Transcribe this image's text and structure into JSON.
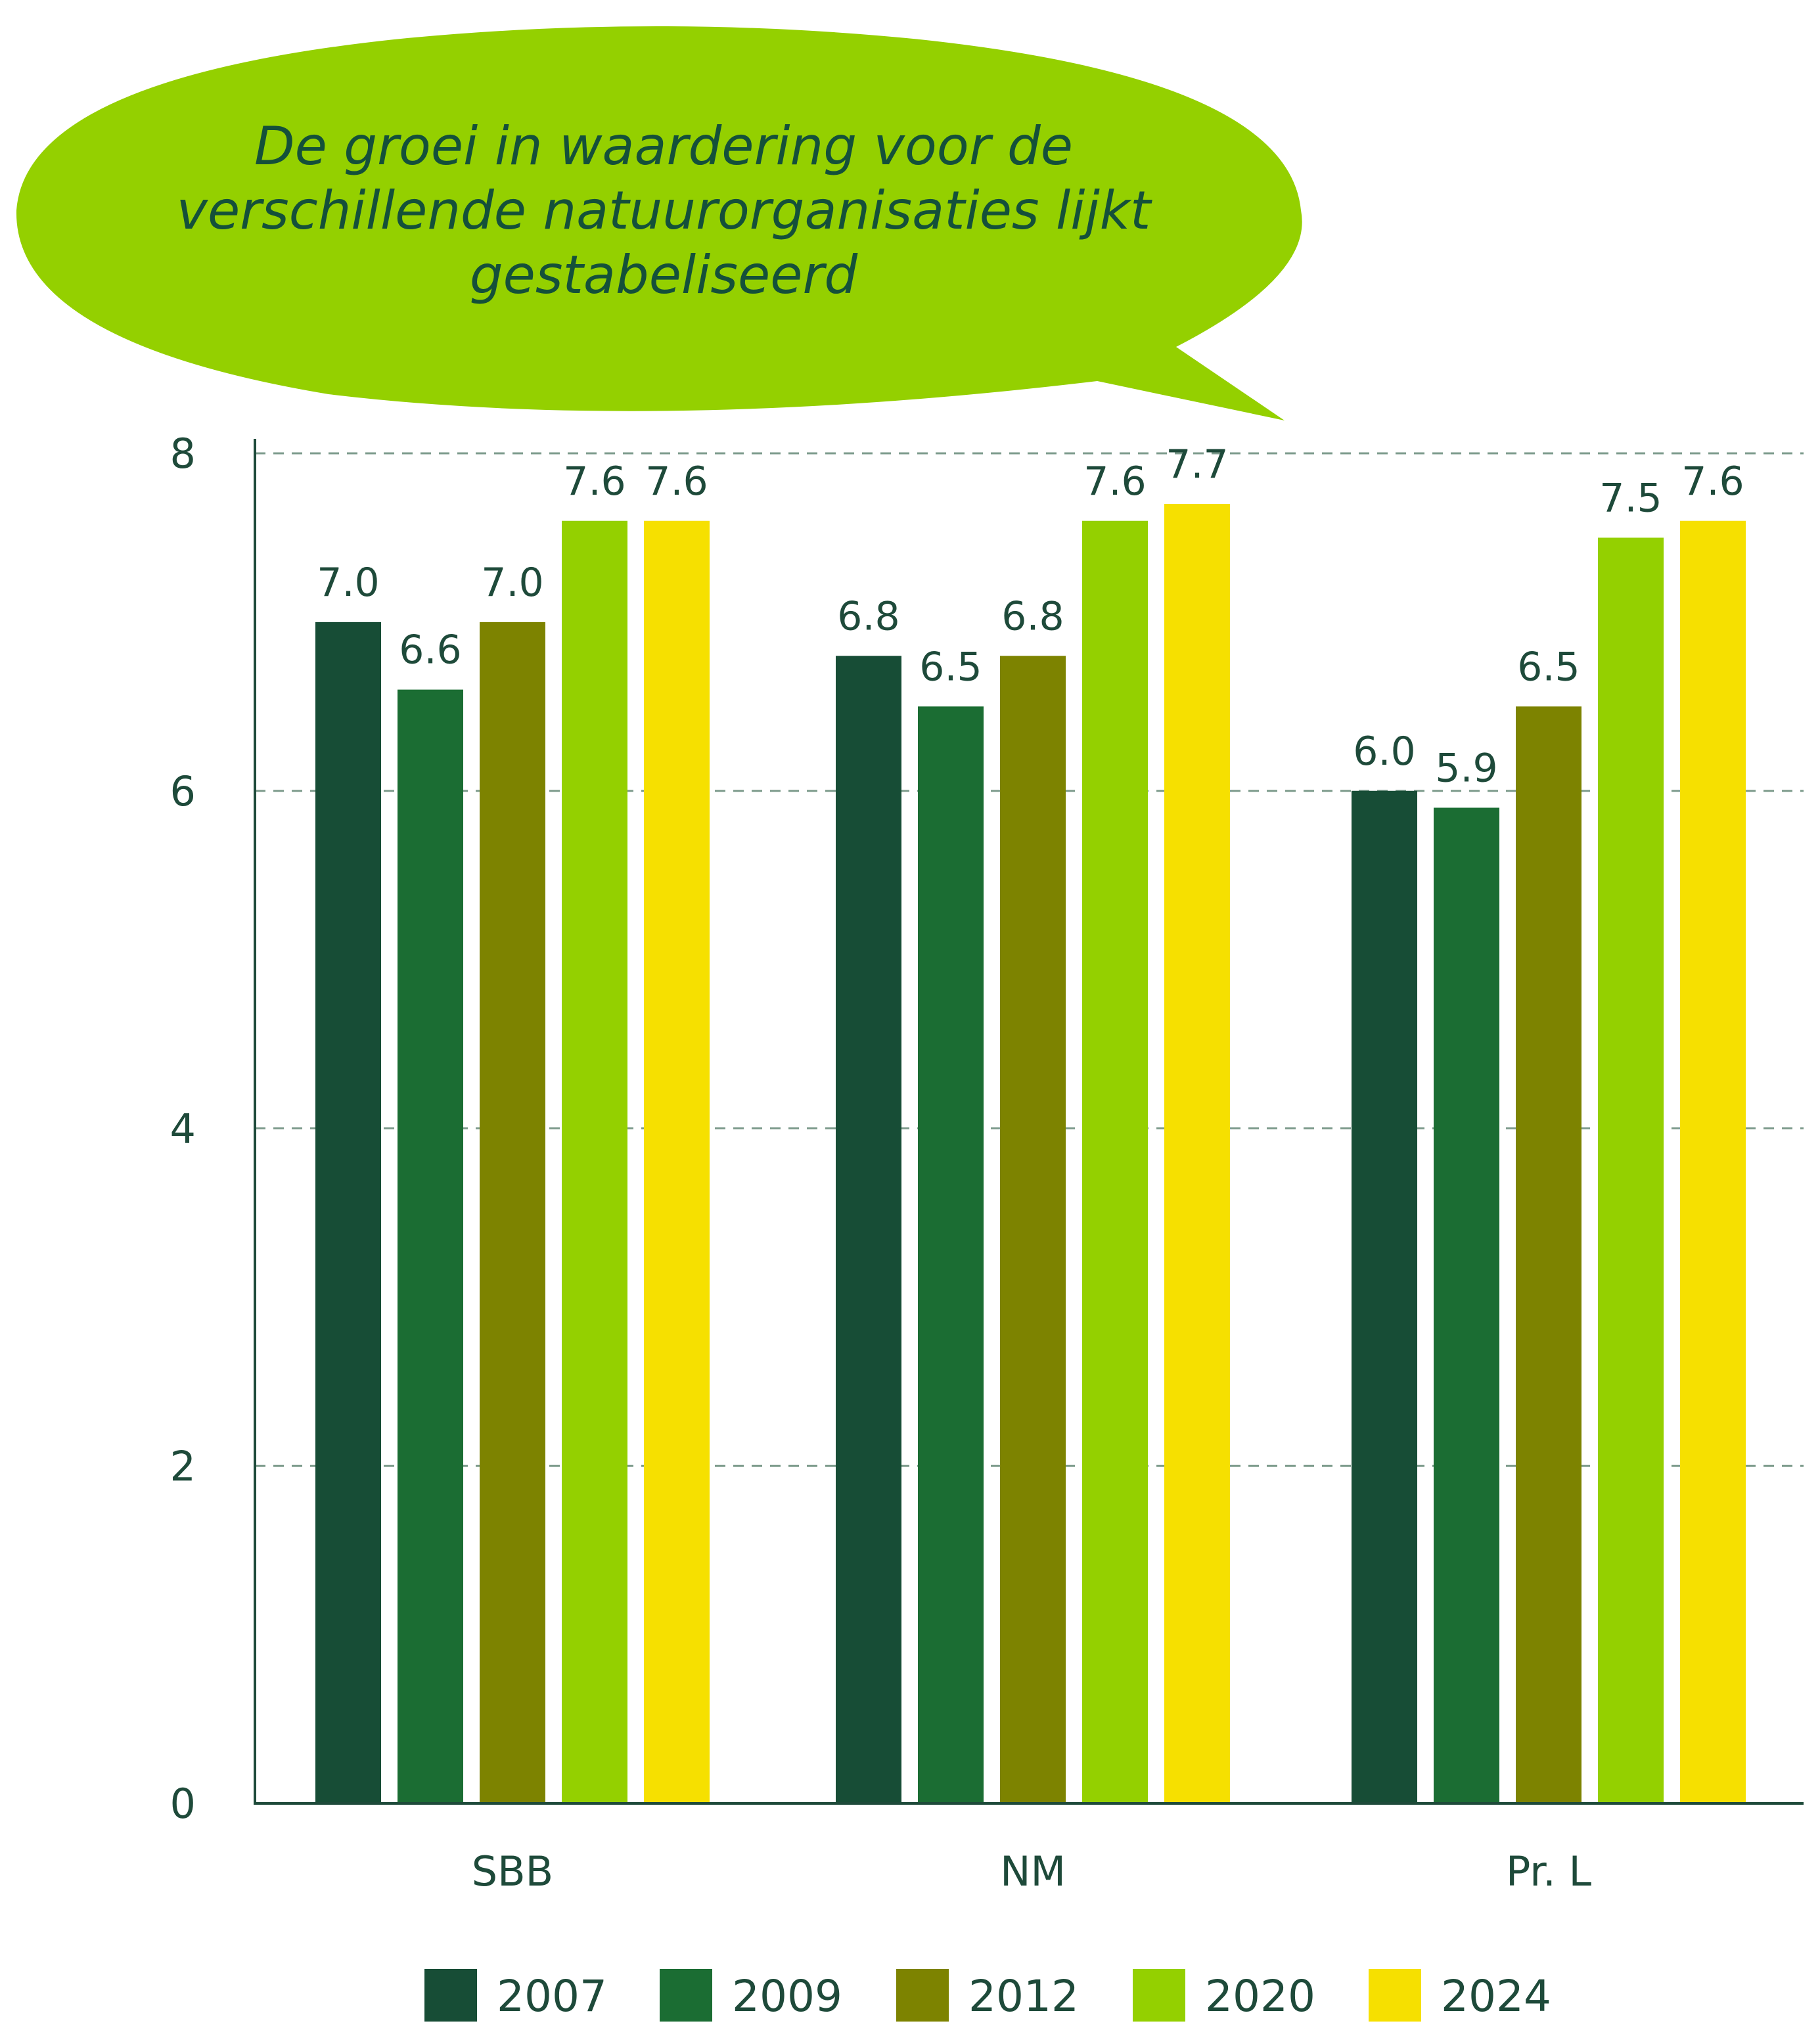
{
  "colors": {
    "bubble": "#94d000",
    "bubble_text": "#14503a",
    "axis": "#1e4a3a",
    "grid": "#7d9b8c",
    "text": "#1e4a3a"
  },
  "callout": {
    "lines": [
      "De groei in waardering voor de",
      "verschillende natuurorganisaties lijkt",
      "gestabeliseerd"
    ]
  },
  "chart_data": {
    "type": "bar",
    "categories": [
      "SBB",
      "NM",
      "Pr. L"
    ],
    "series": [
      {
        "name": "2007",
        "color": "#174d36",
        "values": [
          7.0,
          6.8,
          6.0
        ]
      },
      {
        "name": "2009",
        "color": "#1b6d33",
        "values": [
          6.6,
          6.5,
          5.9
        ]
      },
      {
        "name": "2012",
        "color": "#7d8300",
        "values": [
          7.0,
          6.8,
          6.5
        ]
      },
      {
        "name": "2020",
        "color": "#94d000",
        "values": [
          7.6,
          7.6,
          7.5
        ]
      },
      {
        "name": "2024",
        "color": "#f6e000",
        "values": [
          7.6,
          7.7,
          7.6
        ]
      }
    ],
    "data_labels": [
      [
        "7.0",
        "6.8",
        "6.0"
      ],
      [
        "6.6",
        "6.5",
        "5.9"
      ],
      [
        "7.0",
        "6.8",
        "6.5"
      ],
      [
        "7.6",
        "7.6",
        "7.5"
      ],
      [
        "7.6",
        "7.7",
        "7.6"
      ]
    ],
    "ylim": [
      0,
      8
    ],
    "yticks": [
      0,
      2,
      4,
      6,
      8
    ],
    "ytick_labels": [
      "0",
      "2",
      "4",
      "6",
      "8"
    ],
    "grid": true,
    "grid_style": "dashed",
    "legend_position": "bottom"
  }
}
